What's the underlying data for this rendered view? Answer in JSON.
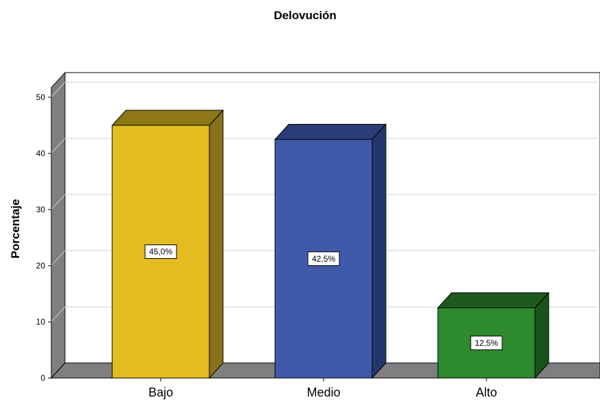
{
  "chart_data": {
    "type": "bar",
    "title": "Delovución",
    "xlabel": "",
    "ylabel": "Porcentaje",
    "categories": [
      "Bajo",
      "Medio",
      "Alto"
    ],
    "values": [
      45.0,
      42.5,
      12.5
    ],
    "data_labels": [
      "45,0%",
      "42,5%",
      "12,5%"
    ],
    "ylim": [
      0,
      50
    ],
    "yticks": [
      "0",
      "10",
      "20",
      "30",
      "40",
      "50"
    ],
    "grid": true,
    "legend": "none",
    "style": "3d",
    "colors": {
      "Bajo": {
        "front": "#E3BC22",
        "side": "#87721A",
        "top": "#8E7716"
      },
      "Medio": {
        "front": "#3F5AA8",
        "side": "#24376B",
        "top": "#2A3D78"
      },
      "Alto": {
        "front": "#2E8A2E",
        "side": "#1A531A",
        "top": "#1E5A1E"
      }
    }
  }
}
